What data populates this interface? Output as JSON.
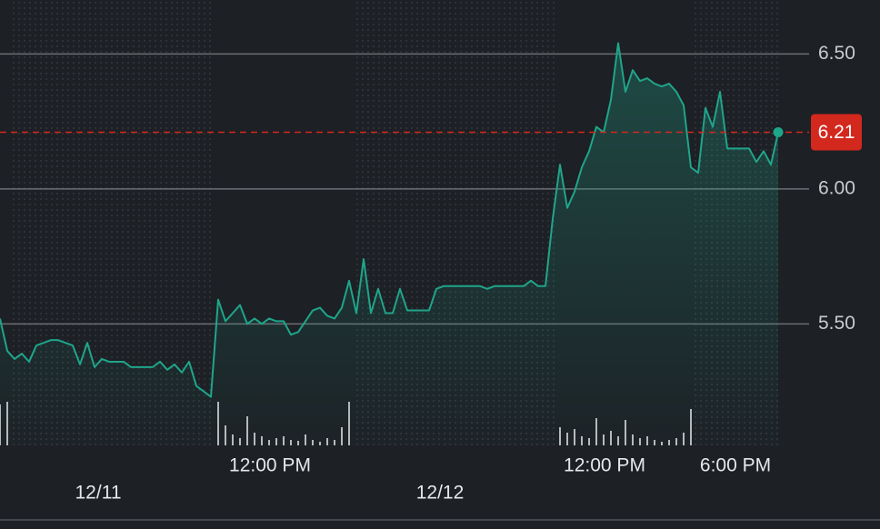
{
  "chart_data": {
    "type": "line",
    "color": "#1fa58a",
    "last_color": "#d3281e",
    "ylim": [
      5.05,
      6.7
    ],
    "yticks": [
      {
        "value": 6.5,
        "label": "6.50"
      },
      {
        "value": 6.0,
        "label": "6.00"
      },
      {
        "value": 5.5,
        "label": "5.50"
      }
    ],
    "grid": true,
    "categories": [
      null,
      null,
      null,
      null,
      null,
      null,
      null,
      null,
      null,
      null,
      null,
      null,
      null,
      null,
      null,
      null,
      null,
      null,
      null,
      null,
      null,
      null,
      null,
      null,
      null,
      null,
      null,
      null,
      null,
      null,
      null,
      null,
      null,
      null,
      null,
      null,
      null,
      "12:00 PM",
      null,
      null,
      null,
      null,
      null,
      null,
      null,
      null,
      null,
      null,
      null,
      null,
      null,
      null,
      null,
      null,
      null,
      null,
      null,
      null,
      null,
      null,
      null,
      null,
      null,
      null,
      null,
      null,
      null,
      null,
      null,
      null,
      null,
      null,
      null,
      null,
      null,
      null,
      null,
      null,
      null,
      null,
      null,
      null,
      null,
      "12:00 PM",
      null,
      null,
      null,
      null,
      null,
      null,
      null,
      null,
      null,
      null,
      null,
      null,
      null,
      null,
      null,
      null,
      null,
      "6:00 PM",
      null,
      null,
      null,
      null,
      null,
      null
    ],
    "dates": [
      null,
      null,
      null,
      null,
      null,
      null,
      null,
      null,
      null,
      null,
      null,
      null,
      null,
      "12/11",
      null,
      null,
      null,
      null,
      null,
      null,
      null,
      null,
      null,
      null,
      null,
      null,
      null,
      null,
      null,
      null,
      null,
      null,
      null,
      null,
      null,
      null,
      null,
      null,
      null,
      null,
      null,
      null,
      null,
      null,
      null,
      null,
      null,
      null,
      null,
      null,
      null,
      null,
      null,
      null,
      null,
      null,
      null,
      null,
      null,
      null,
      "12/12",
      null,
      null,
      null,
      null,
      null,
      null,
      null,
      null,
      null,
      null,
      null,
      null,
      null,
      null,
      null,
      null,
      null,
      null,
      null,
      null,
      null,
      null,
      null,
      null,
      null,
      null,
      null,
      null,
      null,
      null,
      null,
      null,
      null,
      null,
      null,
      null,
      null,
      null,
      null,
      null,
      null,
      null,
      null,
      null,
      null,
      null,
      null
    ],
    "values": [
      5.52,
      5.4,
      5.37,
      5.39,
      5.36,
      5.42,
      5.43,
      5.44,
      5.44,
      5.43,
      5.42,
      5.35,
      5.43,
      5.34,
      5.37,
      5.36,
      5.36,
      5.36,
      5.34,
      5.34,
      5.34,
      5.34,
      5.36,
      5.33,
      5.35,
      5.32,
      5.36,
      5.27,
      5.25,
      5.23,
      5.59,
      5.51,
      5.54,
      5.57,
      5.5,
      5.52,
      5.5,
      5.52,
      5.51,
      5.51,
      5.46,
      5.47,
      5.51,
      5.55,
      5.56,
      5.53,
      5.52,
      5.56,
      5.66,
      5.54,
      5.74,
      5.54,
      5.63,
      5.54,
      5.54,
      5.63,
      5.55,
      5.55,
      5.55,
      5.55,
      5.63,
      5.64,
      5.64,
      5.64,
      5.64,
      5.64,
      5.64,
      5.63,
      5.64,
      5.64,
      5.64,
      5.64,
      5.64,
      5.66,
      5.64,
      5.64,
      5.89,
      6.09,
      5.93,
      5.99,
      6.08,
      6.14,
      6.23,
      6.21,
      6.33,
      6.54,
      6.36,
      6.44,
      6.4,
      6.41,
      6.39,
      6.38,
      6.39,
      6.36,
      6.31,
      6.08,
      6.06,
      6.3,
      6.23,
      6.36,
      6.15,
      6.15,
      6.15,
      6.15,
      6.1,
      6.14,
      6.09,
      6.21
    ],
    "volume": [
      45,
      48,
      null,
      null,
      null,
      null,
      null,
      null,
      null,
      null,
      null,
      null,
      null,
      null,
      null,
      null,
      null,
      null,
      null,
      null,
      null,
      null,
      null,
      null,
      null,
      null,
      null,
      null,
      null,
      null,
      48,
      22,
      12,
      8,
      32,
      14,
      10,
      6,
      8,
      10,
      6,
      5,
      12,
      6,
      4,
      8,
      6,
      20,
      48,
      null,
      null,
      null,
      null,
      null,
      null,
      null,
      null,
      null,
      null,
      null,
      null,
      null,
      null,
      null,
      null,
      null,
      null,
      null,
      null,
      null,
      null,
      null,
      null,
      null,
      null,
      null,
      null,
      20,
      14,
      18,
      10,
      8,
      30,
      12,
      16,
      10,
      28,
      12,
      8,
      10,
      6,
      4,
      6,
      8,
      14,
      40,
      null,
      null,
      null,
      null,
      null,
      null,
      null,
      null,
      null,
      null,
      null,
      null
    ]
  }
}
